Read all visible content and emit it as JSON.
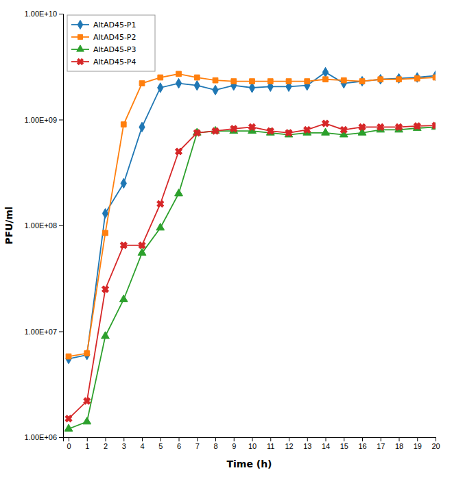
{
  "chart_data": {
    "type": "line",
    "xlabel": "Time (h)",
    "ylabel": "PFU/ml",
    "x": [
      0,
      1,
      2,
      3,
      4,
      5,
      6,
      7,
      8,
      9,
      10,
      11,
      12,
      13,
      14,
      15,
      16,
      17,
      18,
      19,
      20
    ],
    "series": [
      {
        "name": "AltAD45-P1",
        "marker": "diamond",
        "values": [
          5500000.0,
          6000000.0,
          130000000.0,
          250000000.0,
          850000000.0,
          2000000000.0,
          2200000000.0,
          2100000000.0,
          1900000000.0,
          2100000000.0,
          2000000000.0,
          2050000000.0,
          2050000000.0,
          2100000000.0,
          2800000000.0,
          2200000000.0,
          2300000000.0,
          2400000000.0,
          2450000000.0,
          2500000000.0,
          2600000000.0
        ]
      },
      {
        "name": "AltAD45-P2",
        "marker": "square",
        "values": [
          5800000.0,
          6200000.0,
          85000000.0,
          900000000.0,
          2200000000.0,
          2500000000.0,
          2700000000.0,
          2500000000.0,
          2350000000.0,
          2300000000.0,
          2300000000.0,
          2300000000.0,
          2300000000.0,
          2300000000.0,
          2400000000.0,
          2350000000.0,
          2300000000.0,
          2400000000.0,
          2400000000.0,
          2450000000.0,
          2500000000.0
        ]
      },
      {
        "name": "AltAD45-P3",
        "marker": "triangle",
        "values": [
          1200000.0,
          1400000.0,
          9000000.0,
          20000000.0,
          55000000.0,
          95000000.0,
          200000000.0,
          750000000.0,
          780000000.0,
          780000000.0,
          780000000.0,
          750000000.0,
          720000000.0,
          750000000.0,
          750000000.0,
          720000000.0,
          750000000.0,
          800000000.0,
          800000000.0,
          830000000.0,
          850000000.0
        ]
      },
      {
        "name": "AltAD45-P4",
        "marker": "x",
        "values": [
          1500000.0,
          2200000.0,
          25000000.0,
          65000000.0,
          65000000.0,
          160000000.0,
          500000000.0,
          750000000.0,
          780000000.0,
          820000000.0,
          850000000.0,
          780000000.0,
          750000000.0,
          800000000.0,
          920000000.0,
          800000000.0,
          850000000.0,
          850000000.0,
          850000000.0,
          870000000.0,
          880000000.0
        ]
      }
    ],
    "xlim": [
      -0.3,
      20
    ],
    "xticks": [
      0,
      1,
      2,
      3,
      4,
      5,
      6,
      7,
      8,
      9,
      10,
      11,
      12,
      13,
      14,
      15,
      16,
      17,
      18,
      19,
      20
    ],
    "ylim": [
      1000000.0,
      10000000000.0
    ],
    "yticks": [
      {
        "value": 1000000.0,
        "label": "1.00E+06"
      },
      {
        "value": 10000000.0,
        "label": "1.00E+07"
      },
      {
        "value": 100000000.0,
        "label": "1.00E+08"
      },
      {
        "value": 1000000000.0,
        "label": "1.00E+09"
      },
      {
        "value": 10000000000.0,
        "label": "1.00E+10"
      }
    ],
    "log": "y",
    "grid": false,
    "legend": "upper left"
  }
}
